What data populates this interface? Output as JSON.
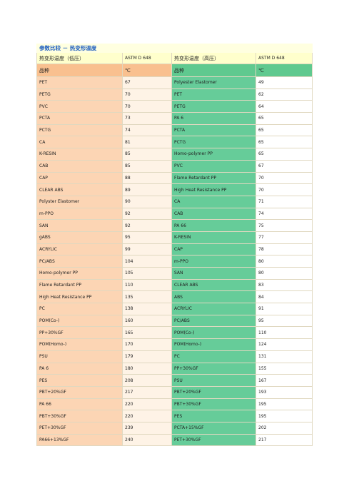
{
  "title": "参数比较 － 热变形温度",
  "header": [
    "热变形温度（低压）",
    "ASTM D 648",
    "热变形温度（高压）",
    "ASTM D 648"
  ],
  "subheader": [
    "品种",
    "℃",
    "品种",
    "℃"
  ],
  "rows": [
    [
      "PET",
      67,
      "Polyester Elastomer",
      49
    ],
    [
      "PETG",
      70,
      "PET",
      62
    ],
    [
      "PVC",
      70,
      "PETG",
      64
    ],
    [
      "PCTA",
      73,
      "PA 6",
      65
    ],
    [
      "PCTG",
      74,
      "PCTA",
      65
    ],
    [
      "CA",
      81,
      "PCTG",
      65
    ],
    [
      "K-RESIN",
      85,
      "Homo-polymer PP",
      65
    ],
    [
      "CAB",
      85,
      "PVC",
      67
    ],
    [
      "CAP",
      88,
      "Flame Retardant PP",
      70
    ],
    [
      "CLEAR ABS",
      89,
      "High Heat Resistance PP",
      70
    ],
    [
      "Polyster Elastomer",
      90,
      "CA",
      71
    ],
    [
      "m-PPO",
      92,
      "CAB",
      74
    ],
    [
      "SAN",
      92,
      "PA 66",
      75
    ],
    [
      "gABS",
      95,
      "K-RESIN",
      77
    ],
    [
      "ACRYLIC",
      99,
      "CAP",
      78
    ],
    [
      "PC/ABS",
      104,
      "m-PPO",
      80
    ],
    [
      "Homo-polymer PP",
      105,
      "SAN",
      80
    ],
    [
      "Flame Retardant PP",
      110,
      "CLEAR ABS",
      83
    ],
    [
      "High Heat Resistance PP",
      135,
      "ABS",
      84
    ],
    [
      "PC",
      138,
      "ACRYLIC",
      91
    ],
    [
      "POM(Co-)",
      160,
      "PC/ABS",
      95
    ],
    [
      "PP+30%GF",
      165,
      "POM(Co-)",
      110
    ],
    [
      "POM(Homo-)",
      170,
      "POM(Homo-)",
      124
    ],
    [
      "PSU",
      179,
      "PC",
      131
    ],
    [
      "PA 6",
      180,
      "PP+30%GF",
      155
    ],
    [
      "PES",
      208,
      "PSU",
      167
    ],
    [
      "PBT+20%GF",
      217,
      "PBT+20%GF",
      193
    ],
    [
      "PA 66",
      220,
      "PBT+30%GF",
      195
    ],
    [
      "PBT+30%GF",
      220,
      "PES",
      195
    ],
    [
      "PET+30%GF",
      239,
      "PCTA+15%GF",
      202
    ],
    [
      "PA66+13%GF",
      240,
      "PET+30%GF",
      217
    ]
  ]
}
